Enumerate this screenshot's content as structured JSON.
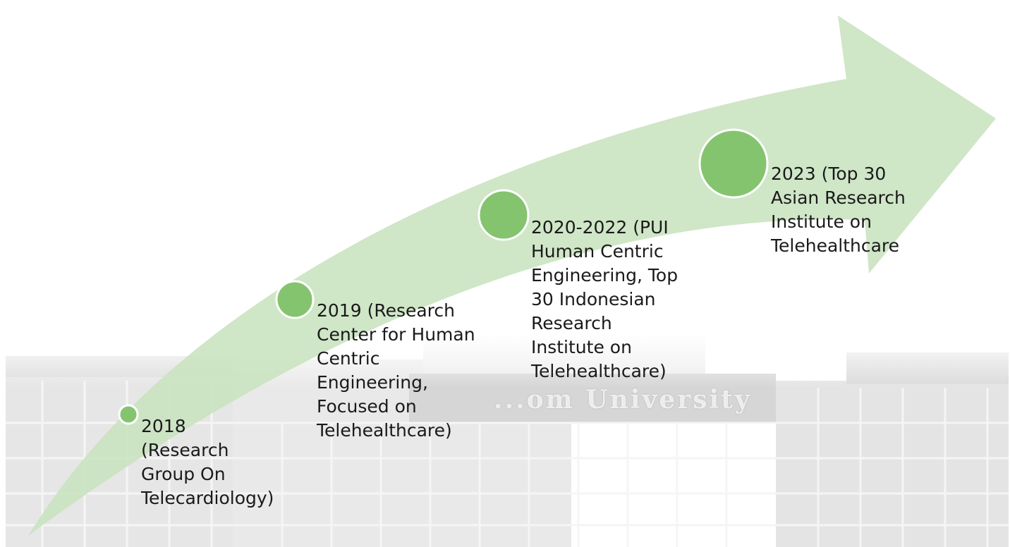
{
  "background": {
    "sign_fragment": "...om University"
  },
  "colors": {
    "arrow": "#c8e3bf",
    "node_fill": "#85c46e",
    "node_stroke": "#ffffff",
    "text": "#1a1a1a"
  },
  "milestones": [
    {
      "id": "2018",
      "text": "2018\n(Research\nGroup On\nTelecardiology)"
    },
    {
      "id": "2019",
      "text": "2019 (Research\nCenter for Human\nCentric\nEngineering,\nFocused on\nTelehealthcare)"
    },
    {
      "id": "2020-2022",
      "text": "2020-2022 (PUI\nHuman Centric\nEngineering, Top\n30 Indonesian\nResearch\nInstitute on\nTelehealthcare)"
    },
    {
      "id": "2023",
      "text": "2023 (Top 30\nAsian Research\nInstitute on\nTelehealthcare"
    }
  ]
}
